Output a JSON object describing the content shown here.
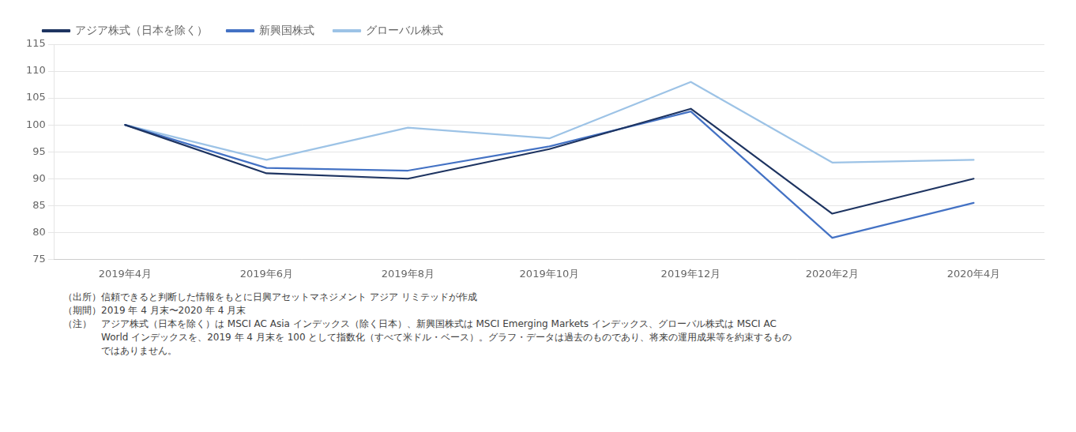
{
  "chart_data": {
    "type": "line",
    "categories": [
      "2019年4月",
      "2019年6月",
      "2019年8月",
      "2019年10月",
      "2019年12月",
      "2020年2月",
      "2020年4月"
    ],
    "series": [
      {
        "name": "アジア株式（日本を除く）",
        "color": "#1e3461",
        "values": [
          100,
          91,
          90,
          95.5,
          103,
          83.5,
          90
        ]
      },
      {
        "name": "新興国株式",
        "color": "#4472c4",
        "values": [
          100,
          92,
          91.5,
          96,
          102.5,
          79,
          85.5
        ]
      },
      {
        "name": "グローバル株式",
        "color": "#9dc3e6",
        "values": [
          100,
          93.5,
          99.5,
          97.5,
          108,
          93,
          93.5
        ]
      }
    ],
    "ylim": [
      75,
      115
    ],
    "yticks": [
      75,
      80,
      85,
      90,
      95,
      100,
      105,
      110,
      115
    ],
    "grid": true,
    "legend": "top",
    "annotations": [
      "（出所）信頼できると判断した情報をもとに日興アセットマネジメント アジア リミテッドが作成",
      "（期間）2019 年 4 月末〜2020 年 4 月末",
      "（注）　アジア株式（日本を除く）は MSCI AC Asia インデックス（除く日本）、新興国株式は MSCI Emerging Markets インデックス、グローバル株式は MSCI AC",
      "　　　　World インデックスを、2019 年 4 月末を 100 として指数化（すべて米ドル・ベース）。グラフ・データは過去のものであり、将来の運用成果等を約束するもの",
      "　　　　ではありません。"
    ]
  }
}
